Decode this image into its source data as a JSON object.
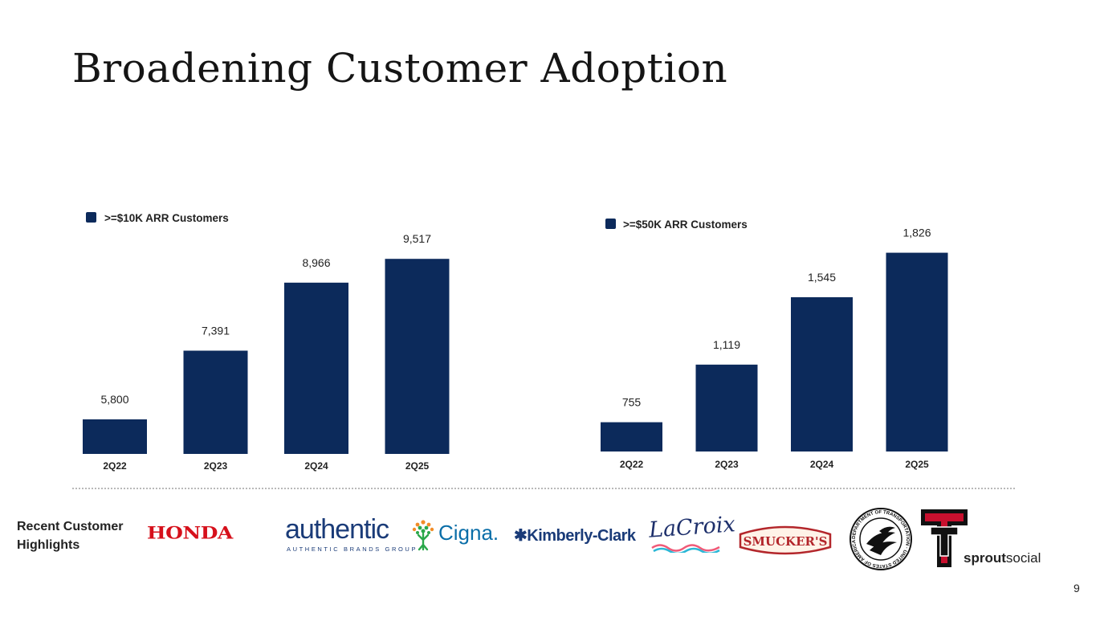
{
  "title": "Broadening Customer Adoption",
  "chart_data": [
    {
      "type": "bar",
      "legend": ">=$10K ARR Customers",
      "categories": [
        "2Q22",
        "2Q23",
        "2Q24",
        "2Q25"
      ],
      "values": [
        5800,
        7391,
        8966,
        9517
      ],
      "labels": [
        "5,800",
        "7,391",
        "8,966",
        "9,517"
      ],
      "ylim": [
        5000,
        9800
      ],
      "color": "#0c2a5b"
    },
    {
      "type": "bar",
      "legend": ">=$50K ARR Customers",
      "categories": [
        "2Q22",
        "2Q23",
        "2Q24",
        "2Q25"
      ],
      "values": [
        755,
        1119,
        1545,
        1826
      ],
      "labels": [
        "755",
        "1,119",
        "1,545",
        "1,826"
      ],
      "ylim": [
        570,
        1900
      ],
      "color": "#0c2a5b"
    }
  ],
  "highlights": {
    "label": "Recent Customer Highlights",
    "logos": {
      "honda": "HONDA",
      "authentic": "authentic",
      "authentic_sub": "AUTHENTIC BRANDS GROUP",
      "cigna": "Cigna.",
      "kimberly_clark": "✱Kimberly-Clark",
      "lacroix": "LaCroix",
      "smuckers": "SMUCKER'S",
      "dot_seal": "DEPARTMENT OF TRANSPORTATION · UNITED STATES OF AMERICA",
      "texas_tech": "TT",
      "sprout_bold": "sprout",
      "sprout_regular": "social"
    }
  },
  "page_number": "9"
}
